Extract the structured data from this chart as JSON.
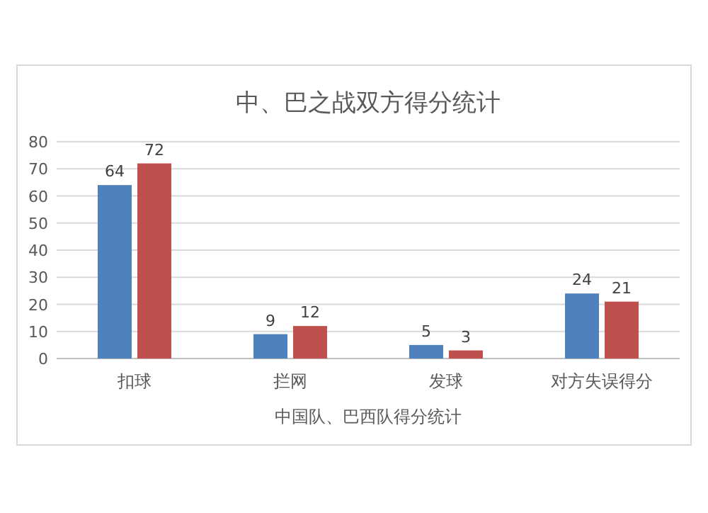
{
  "chart_data": {
    "type": "bar",
    "title": "中、巴之战双方得分统计",
    "xlabel": "中国队、巴西队得分统计",
    "categories": [
      "扣球",
      "拦网",
      "发球",
      "对方失误得分"
    ],
    "series": [
      {
        "color": "#4f81bd",
        "values": [
          64,
          9,
          5,
          24
        ]
      },
      {
        "color": "#c0504d",
        "values": [
          72,
          12,
          3,
          21
        ]
      }
    ],
    "ylim": [
      0,
      80
    ],
    "yticks": [
      0,
      10,
      20,
      30,
      40,
      50,
      60,
      70,
      80
    ],
    "grid": "y",
    "data_labels": true
  }
}
